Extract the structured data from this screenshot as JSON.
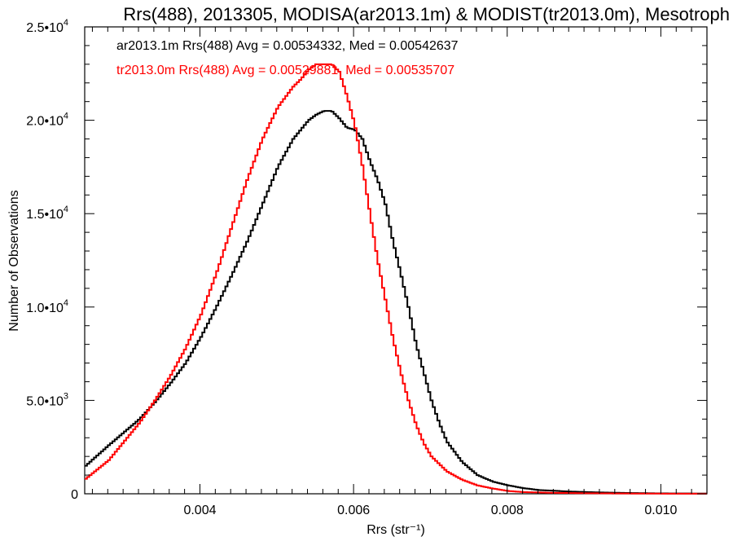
{
  "chart_data": {
    "type": "line",
    "title": "Rrs(488), 2013305, MODISA(ar2013.1m) & MODIST(tr2013.0m), Mesotroph",
    "xlabel": "Rrs (str⁻¹)",
    "ylabel": "Number of Observations",
    "xlim": [
      0.0025,
      0.0106
    ],
    "ylim": [
      0,
      25000
    ],
    "grid": false,
    "legend_position": "top-left",
    "x_ticks": [
      {
        "value": 0.004,
        "label": "0.004"
      },
      {
        "value": 0.006,
        "label": "0.006"
      },
      {
        "value": 0.008,
        "label": "0.008"
      },
      {
        "value": 0.01,
        "label": "0.010"
      }
    ],
    "y_ticks": [
      {
        "value": 0,
        "label": "0",
        "base": "0",
        "exp": ""
      },
      {
        "value": 5000,
        "label": "5.0•10^3",
        "base": "5.0•10",
        "exp": "3"
      },
      {
        "value": 10000,
        "label": "1.0•10^4",
        "base": "1.0•10",
        "exp": "4"
      },
      {
        "value": 15000,
        "label": "1.5•10^4",
        "base": "1.5•10",
        "exp": "4"
      },
      {
        "value": 20000,
        "label": "2.0•10^4",
        "base": "2.0•10",
        "exp": "4"
      },
      {
        "value": 25000,
        "label": "2.5•10^4",
        "base": "2.5•10",
        "exp": "4"
      }
    ],
    "series": [
      {
        "name": "ar2013.1m",
        "color": "#000000",
        "legend_text": "ar2013.1m Rrs(488) Avg = 0.00534332, Med = 0.00542637",
        "x": [
          0.0025,
          0.0028,
          0.003,
          0.0032,
          0.0034,
          0.0036,
          0.0038,
          0.004,
          0.0042,
          0.0044,
          0.0046,
          0.0048,
          0.005,
          0.0052,
          0.0054,
          0.0055,
          0.0056,
          0.0057,
          0.0058,
          0.0059,
          0.006,
          0.0061,
          0.0062,
          0.0063,
          0.0064,
          0.0065,
          0.0066,
          0.0067,
          0.0068,
          0.0069,
          0.007,
          0.0071,
          0.0072,
          0.0074,
          0.0076,
          0.0078,
          0.008,
          0.0082,
          0.0084,
          0.0088,
          0.0092,
          0.0096,
          0.01,
          0.0106
        ],
        "y": [
          1500,
          2600,
          3300,
          4000,
          4900,
          5900,
          7000,
          8400,
          10000,
          11700,
          13500,
          15500,
          17500,
          19000,
          20000,
          20300,
          20500,
          20500,
          20100,
          19600,
          19500,
          19000,
          17800,
          16800,
          15500,
          13500,
          11800,
          10000,
          8000,
          6500,
          5000,
          3800,
          2800,
          1700,
          1000,
          650,
          450,
          300,
          200,
          120,
          70,
          40,
          20,
          10
        ]
      },
      {
        "name": "tr2013.0m",
        "color": "#ff0000",
        "legend_text": "tr2013.0m Rrs(488) Avg = 0.00529881, Med = 0.00535707",
        "x": [
          0.0025,
          0.0028,
          0.003,
          0.0032,
          0.0034,
          0.0036,
          0.0038,
          0.004,
          0.0042,
          0.0044,
          0.0046,
          0.0048,
          0.005,
          0.0052,
          0.0053,
          0.0054,
          0.0055,
          0.0056,
          0.0057,
          0.0058,
          0.0059,
          0.006,
          0.0061,
          0.0062,
          0.0063,
          0.0064,
          0.0065,
          0.0066,
          0.0067,
          0.0068,
          0.0069,
          0.007,
          0.0072,
          0.0074,
          0.0076,
          0.0078,
          0.008,
          0.0082,
          0.0086,
          0.009,
          0.0095,
          0.01,
          0.0106
        ],
        "y": [
          800,
          1800,
          2800,
          3800,
          5000,
          6300,
          7800,
          9600,
          11800,
          14300,
          16800,
          19000,
          20700,
          21800,
          22200,
          22700,
          23000,
          23000,
          23000,
          22600,
          21300,
          19800,
          17600,
          15000,
          12500,
          10400,
          8300,
          6500,
          5000,
          3700,
          2700,
          2000,
          1200,
          750,
          450,
          280,
          150,
          90,
          50,
          30,
          15,
          8,
          5
        ]
      }
    ]
  }
}
